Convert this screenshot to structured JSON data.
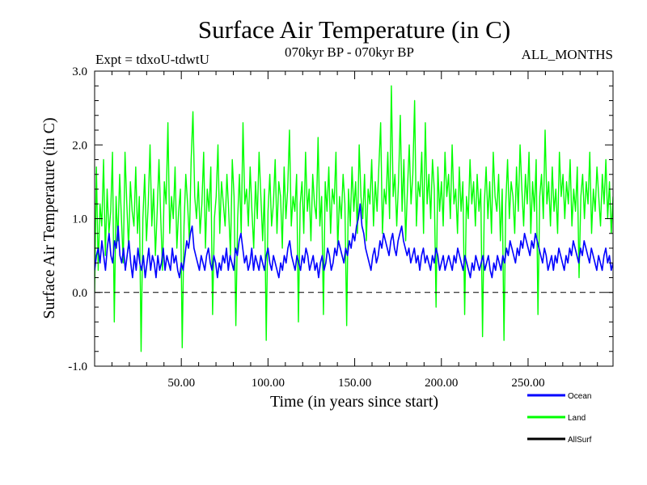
{
  "chart_data": {
    "type": "line",
    "title": "Surface Air Temperature (in C)",
    "subtitle_left": "Expt = tdxoU-tdwtU",
    "subtitle_center": "070kyr BP - 070kyr BP",
    "subtitle_right": "ALL_MONTHS",
    "xlabel": "Time (in years since start)",
    "ylabel": "Surface Air Temperature (in C)",
    "xlim": [
      0,
      299
    ],
    "ylim": [
      -1.0,
      3.0
    ],
    "x_ticks": [
      50,
      100,
      150,
      200,
      250
    ],
    "x_tick_labels": [
      "50.00",
      "100.00",
      "150.00",
      "200.00",
      "250.00"
    ],
    "y_ticks": [
      -1.0,
      0.0,
      1.0,
      2.0,
      3.0
    ],
    "y_tick_labels": [
      "-1.0",
      "0.0",
      "1.0",
      "2.0",
      "3.0"
    ],
    "reference_line": {
      "y": 0.0,
      "style": "dashed"
    },
    "grid": false,
    "legend_position": "bottom-right",
    "x_sampling": {
      "start": 0,
      "step": 0.0833
    },
    "series": [
      {
        "name": "Land",
        "color": "#00ff00",
        "mean_level": 1.05,
        "values": [
          0.0,
          1.7,
          0.3,
          1.2,
          0.9,
          1.8,
          0.5,
          1.4,
          0.8,
          1.1,
          1.9,
          -0.4,
          1.3,
          0.7,
          1.6,
          1.0,
          0.4,
          1.9,
          1.2,
          0.6,
          1.5,
          1.1,
          0.9,
          1.7,
          0.8,
          1.3,
          -0.8,
          1.0,
          1.6,
          0.7,
          1.2,
          2.0,
          0.9,
          1.4,
          0.5,
          1.1,
          1.8,
          1.0,
          0.3,
          1.5,
          1.2,
          2.3,
          0.8,
          1.3,
          1.0,
          1.7,
          0.6,
          1.1,
          1.4,
          -0.75,
          0.9,
          1.6,
          1.2,
          0.7,
          1.8,
          2.45,
          1.3,
          1.0,
          1.5,
          0.8,
          1.2,
          1.9,
          0.6,
          1.4,
          1.1,
          1.7,
          -0.3,
          1.0,
          1.3,
          2.0,
          0.8,
          1.5,
          1.2,
          0.9,
          1.6,
          1.1,
          0.5,
          1.8,
          1.3,
          -0.45,
          1.0,
          1.6,
          0.8,
          2.3,
          1.2,
          1.4,
          0.9,
          1.7,
          1.1,
          0.6,
          1.5,
          1.0,
          1.9,
          1.3,
          0.7,
          1.4,
          -0.65,
          1.1,
          1.6,
          0.9,
          1.2,
          1.8,
          0.8,
          1.5,
          1.3,
          0.6,
          1.7,
          1.0,
          1.4,
          2.2,
          0.9,
          1.3,
          1.1,
          1.6,
          -0.4,
          1.2,
          1.5,
          0.8,
          1.9,
          1.1,
          1.4,
          0.7,
          1.6,
          1.2,
          1.0,
          2.1,
          0.9,
          1.3,
          -0.3,
          1.5,
          1.1,
          1.7,
          0.8,
          1.4,
          1.2,
          1.9,
          0.6,
          1.3,
          1.0,
          1.6,
          1.2,
          -0.45,
          1.4,
          0.9,
          1.7,
          1.1,
          1.5,
          0.8,
          2.0,
          1.3,
          1.0,
          1.6,
          0.7,
          1.4,
          1.2,
          1.8,
          0.9,
          1.5,
          1.1,
          1.7,
          2.3,
          0.8,
          1.4,
          1.2,
          1.9,
          1.0,
          2.8,
          1.3,
          1.6,
          0.9,
          1.5,
          2.4,
          1.1,
          1.8,
          0.7,
          1.4,
          2.0,
          1.2,
          1.6,
          2.6,
          0.9,
          1.5,
          1.3,
          1.9,
          0.8,
          2.3,
          1.2,
          1.6,
          1.0,
          1.8,
          1.4,
          -0.2,
          1.7,
          1.1,
          1.5,
          0.9,
          1.9,
          1.3,
          1.6,
          1.0,
          2.0,
          1.2,
          1.4,
          0.8,
          1.7,
          1.1,
          1.5,
          -0.3,
          1.3,
          1.0,
          1.8,
          1.2,
          1.5,
          0.9,
          1.6,
          1.1,
          1.4,
          -0.6,
          1.2,
          1.7,
          1.0,
          1.5,
          0.8,
          1.9,
          1.3,
          1.1,
          1.6,
          0.7,
          1.4,
          -0.65,
          1.2,
          1.8,
          1.0,
          1.5,
          1.3,
          0.8,
          1.7,
          1.1,
          2.0,
          1.4,
          0.9,
          1.6,
          1.2,
          1.9,
          0.8,
          1.5,
          1.1,
          1.8,
          -0.3,
          1.3,
          1.6,
          1.0,
          2.2,
          1.2,
          1.5,
          0.9,
          1.7,
          1.1,
          1.4,
          0.8,
          1.9,
          1.3,
          1.6,
          1.0,
          1.5,
          1.2,
          1.8,
          0.9,
          1.4,
          1.1,
          1.7,
          0.2,
          1.3,
          1.6,
          1.0,
          1.5,
          1.2,
          1.9,
          0.8,
          1.4,
          1.1,
          1.7,
          1.3,
          0.9,
          1.6,
          1.2,
          1.8,
          1.0,
          1.5,
          0.8,
          1.3
        ]
      },
      {
        "name": "Ocean",
        "color": "#0000ff",
        "mean_level": 0.45,
        "values": [
          0.3,
          0.5,
          0.6,
          0.4,
          0.7,
          0.5,
          0.3,
          0.6,
          0.8,
          0.5,
          0.4,
          0.7,
          0.6,
          0.9,
          0.5,
          0.4,
          0.6,
          0.3,
          0.5,
          0.7,
          0.4,
          0.2,
          0.5,
          0.3,
          0.6,
          0.4,
          0.3,
          0.5,
          0.2,
          0.4,
          0.6,
          0.3,
          0.5,
          0.4,
          0.2,
          0.5,
          0.3,
          0.4,
          0.6,
          0.3,
          0.5,
          0.4,
          0.3,
          0.6,
          0.4,
          0.5,
          0.3,
          0.2,
          0.4,
          0.3,
          0.5,
          0.7,
          0.6,
          0.8,
          0.9,
          0.6,
          0.5,
          0.4,
          0.3,
          0.5,
          0.4,
          0.3,
          0.5,
          0.6,
          0.4,
          0.3,
          0.5,
          0.4,
          0.2,
          0.4,
          0.3,
          0.5,
          0.4,
          0.6,
          0.3,
          0.5,
          0.4,
          0.3,
          0.6,
          0.5,
          0.7,
          0.8,
          0.6,
          0.4,
          0.5,
          0.3,
          0.4,
          0.6,
          0.3,
          0.5,
          0.4,
          0.3,
          0.5,
          0.4,
          0.3,
          0.5,
          0.6,
          0.4,
          0.3,
          0.5,
          0.4,
          0.3,
          0.2,
          0.4,
          0.3,
          0.5,
          0.4,
          0.6,
          0.7,
          0.5,
          0.4,
          0.3,
          0.5,
          0.4,
          0.3,
          0.5,
          0.4,
          0.6,
          0.5,
          0.3,
          0.4,
          0.5,
          0.3,
          0.4,
          0.2,
          0.4,
          0.5,
          0.3,
          0.4,
          0.6,
          0.5,
          0.3,
          0.4,
          0.6,
          0.5,
          0.7,
          0.6,
          0.5,
          0.4,
          0.6,
          0.5,
          0.7,
          0.6,
          0.8,
          0.7,
          0.9,
          1.0,
          1.2,
          0.9,
          0.8,
          0.6,
          0.5,
          0.4,
          0.3,
          0.5,
          0.6,
          0.4,
          0.5,
          0.7,
          0.6,
          0.8,
          0.7,
          0.6,
          0.5,
          0.7,
          0.8,
          0.6,
          0.5,
          0.7,
          0.8,
          0.9,
          0.7,
          0.6,
          0.5,
          0.6,
          0.4,
          0.5,
          0.6,
          0.4,
          0.5,
          0.3,
          0.5,
          0.6,
          0.4,
          0.5,
          0.4,
          0.3,
          0.5,
          0.4,
          0.6,
          0.5,
          0.3,
          0.4,
          0.5,
          0.3,
          0.4,
          0.5,
          0.4,
          0.3,
          0.5,
          0.4,
          0.6,
          0.5,
          0.4,
          0.3,
          0.5,
          0.4,
          0.3,
          0.2,
          0.4,
          0.3,
          0.5,
          0.4,
          0.3,
          0.4,
          0.5,
          0.3,
          0.4,
          0.5,
          0.3,
          0.2,
          0.4,
          0.3,
          0.5,
          0.4,
          0.3,
          0.5,
          0.4,
          0.6,
          0.5,
          0.7,
          0.6,
          0.5,
          0.4,
          0.6,
          0.5,
          0.7,
          0.6,
          0.8,
          0.7,
          0.6,
          0.5,
          0.7,
          0.6,
          0.8,
          0.7,
          0.6,
          0.5,
          0.4,
          0.6,
          0.5,
          0.3,
          0.4,
          0.5,
          0.3,
          0.5,
          0.4,
          0.6,
          0.5,
          0.4,
          0.3,
          0.5,
          0.4,
          0.6,
          0.5,
          0.7,
          0.6,
          0.5,
          0.4,
          0.6,
          0.5,
          0.7,
          0.6,
          0.5,
          0.4,
          0.6,
          0.5,
          0.4,
          0.3,
          0.5,
          0.4,
          0.3,
          0.5,
          0.6,
          0.4,
          0.5,
          0.3,
          0.4
        ]
      },
      {
        "name": "AllSurf",
        "color": "#000000",
        "mean_level": 0.6,
        "values": []
      }
    ]
  }
}
